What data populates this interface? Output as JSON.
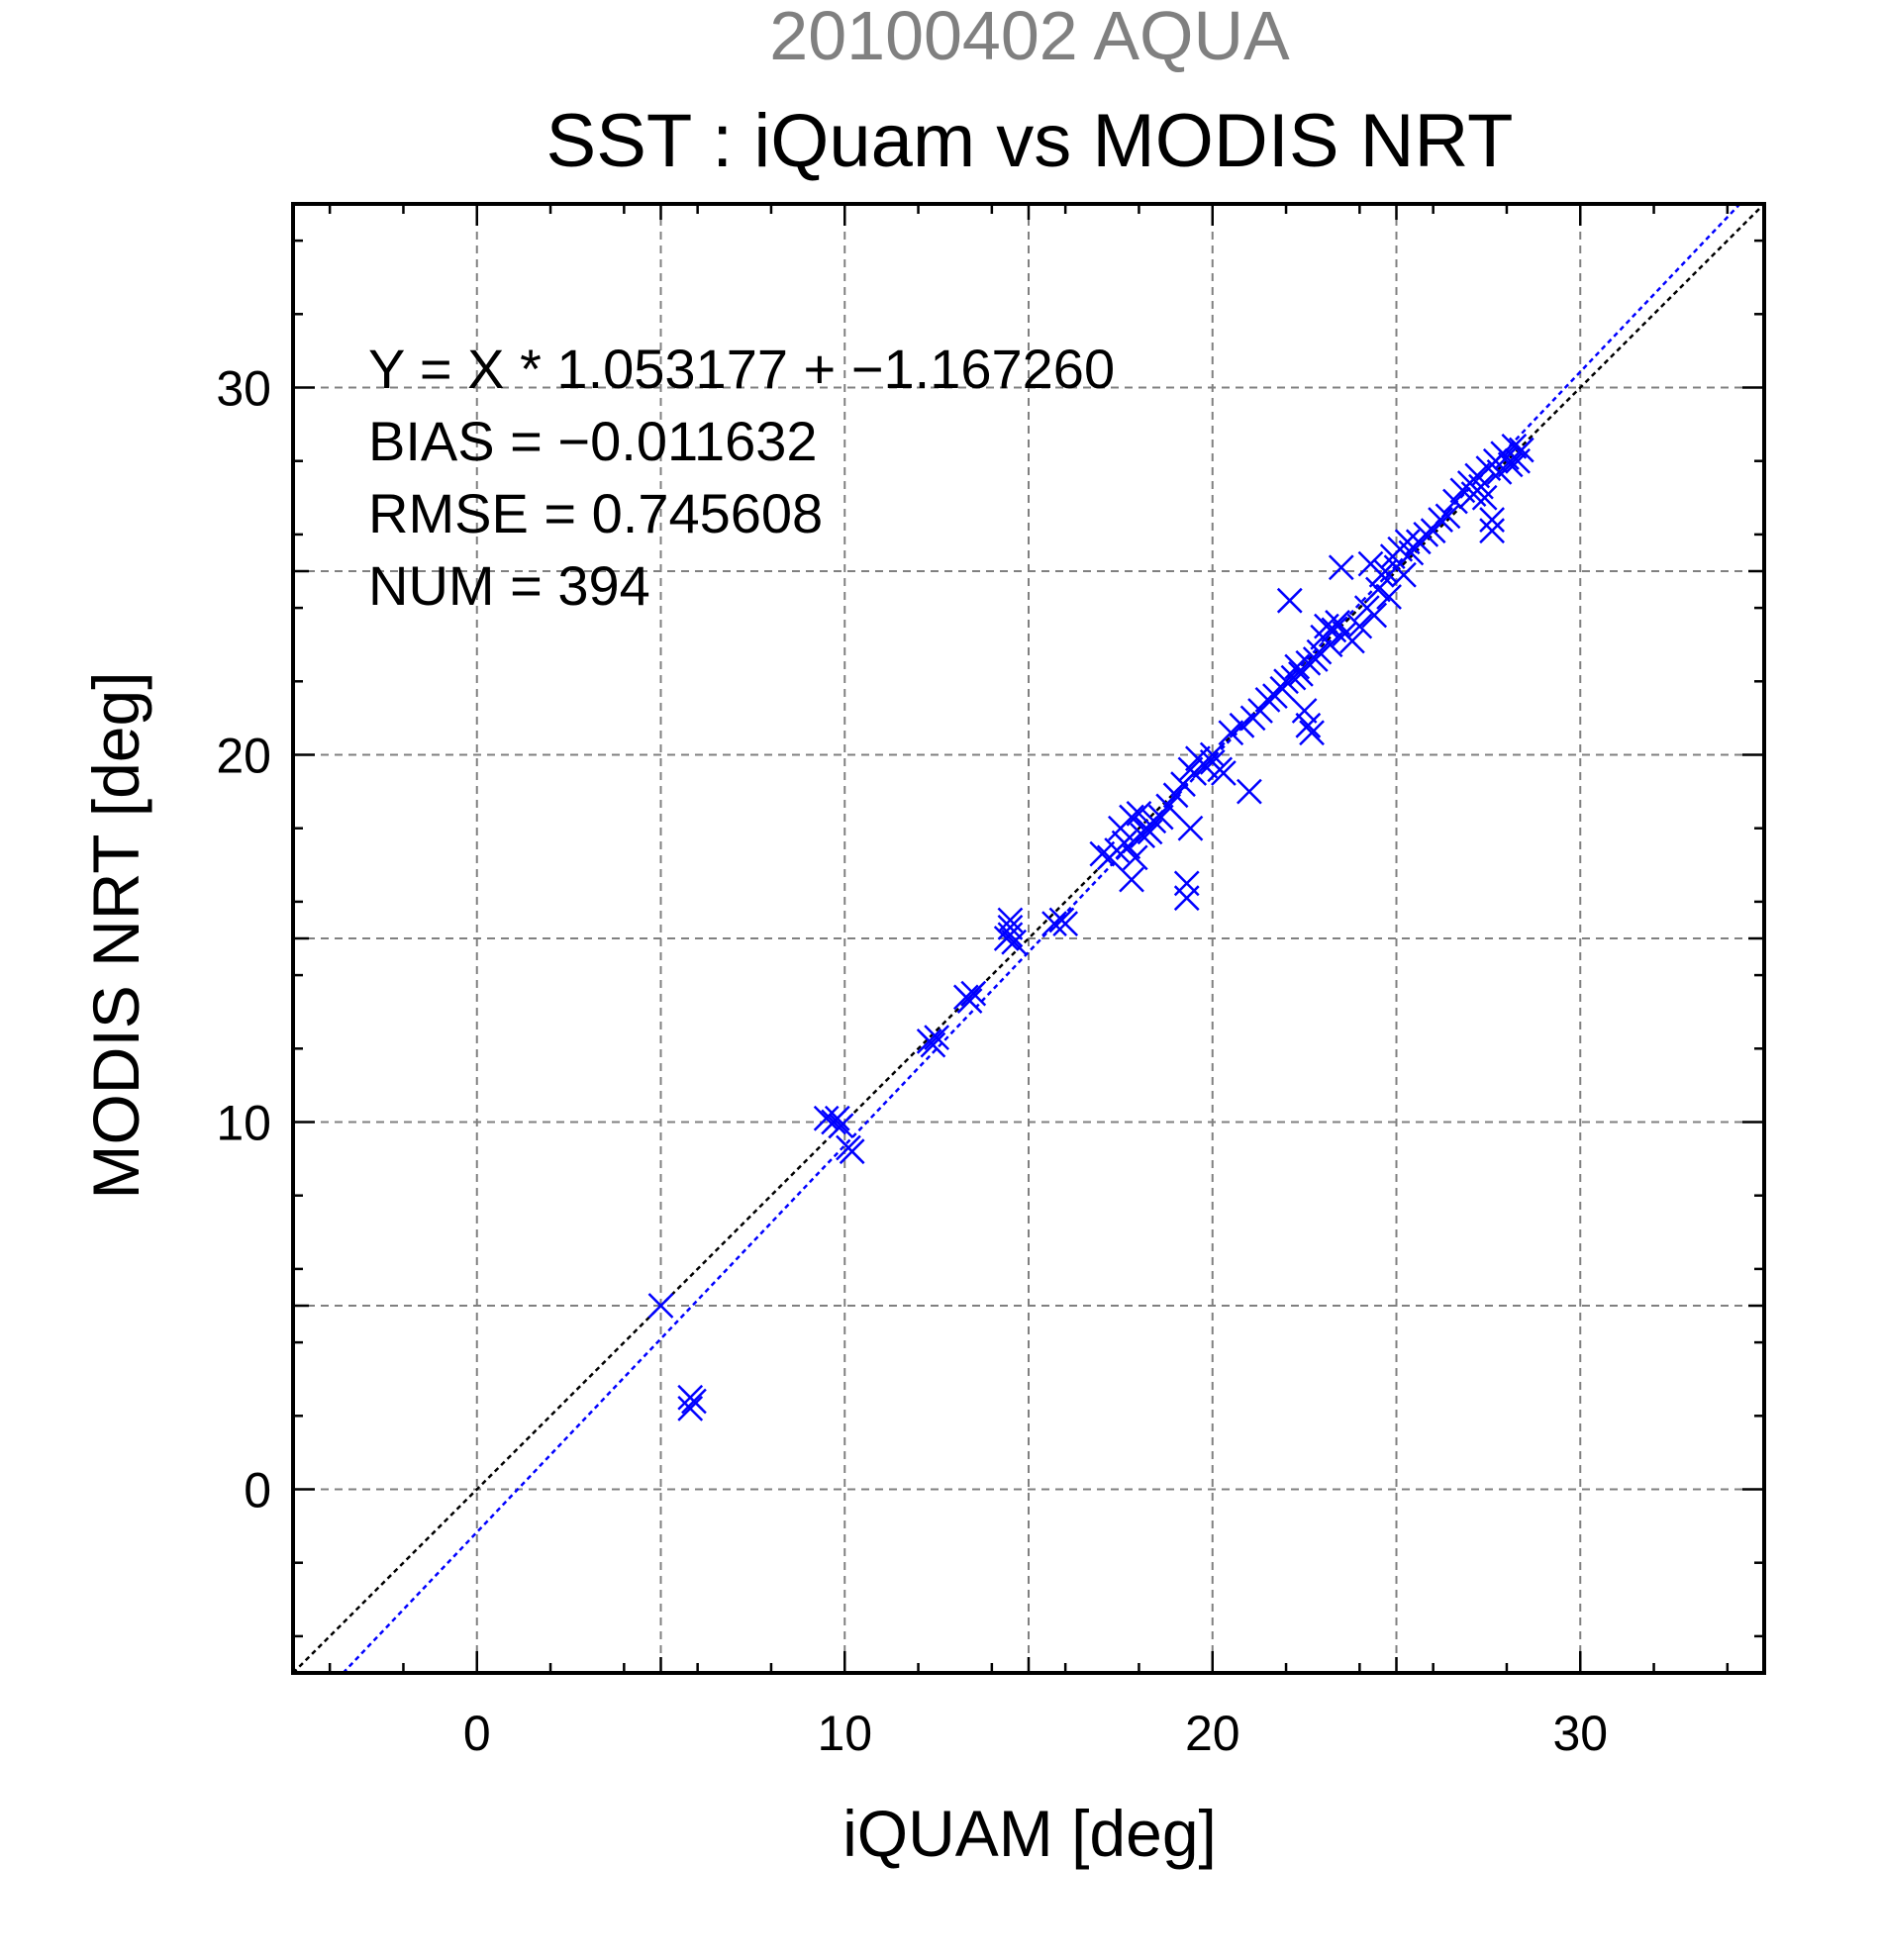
{
  "chart_data": {
    "type": "scatter",
    "supertitle": "20100402 AQUA",
    "title": "SST : iQuam vs MODIS NRT",
    "xlabel": "iQUAM [deg]",
    "ylabel": "MODIS NRT [deg]",
    "xlim": [
      -5,
      35
    ],
    "ylim": [
      -5,
      35
    ],
    "xticks": [
      0,
      10,
      20,
      30
    ],
    "yticks": [
      0,
      10,
      20,
      30
    ],
    "tick_labels_x": [
      "0",
      "10",
      "20",
      "30"
    ],
    "tick_labels_y": [
      "0",
      "10",
      "20",
      "30"
    ],
    "grid": true,
    "stats": [
      "Y = X * 1.053177 + −1.167260",
      "BIAS = −0.011632",
      "RMSE = 0.745608",
      "NUM = 394"
    ],
    "fit_line": {
      "slope": 1.053177,
      "intercept": -1.16726,
      "color": "#0000ff"
    },
    "identity_line": {
      "slope": 1,
      "intercept": 0,
      "color": "#000000"
    },
    "marker_color": "#0000ff",
    "supertitle_color": "#808080",
    "series": [
      {
        "marker": "x",
        "points": [
          [
            5.0,
            5.0
          ],
          [
            5.8,
            2.5
          ],
          [
            5.8,
            2.2
          ],
          [
            5.9,
            2.4
          ],
          [
            9.5,
            10.1
          ],
          [
            9.7,
            10.0
          ],
          [
            9.8,
            10.1
          ],
          [
            9.9,
            9.9
          ],
          [
            10.1,
            9.3
          ],
          [
            10.2,
            9.2
          ],
          [
            12.3,
            12.2
          ],
          [
            12.5,
            12.3
          ],
          [
            12.4,
            12.1
          ],
          [
            13.3,
            13.4
          ],
          [
            13.5,
            13.5
          ],
          [
            13.4,
            13.3
          ],
          [
            14.5,
            15.3
          ],
          [
            14.5,
            15.1
          ],
          [
            14.6,
            14.9
          ],
          [
            14.4,
            15.0
          ],
          [
            14.5,
            15.5
          ],
          [
            15.7,
            15.4
          ],
          [
            15.9,
            15.5
          ],
          [
            16.0,
            15.4
          ],
          [
            17.0,
            17.3
          ],
          [
            17.2,
            17.2
          ],
          [
            17.4,
            17.4
          ],
          [
            17.5,
            18.0
          ],
          [
            17.6,
            17.6
          ],
          [
            17.7,
            17.5
          ],
          [
            17.8,
            16.6
          ],
          [
            17.8,
            18.3
          ],
          [
            17.9,
            17.2
          ],
          [
            18.0,
            18.4
          ],
          [
            18.1,
            17.8
          ],
          [
            18.2,
            18.0
          ],
          [
            18.3,
            17.9
          ],
          [
            18.4,
            18.2
          ],
          [
            18.6,
            18.3
          ],
          [
            18.8,
            18.6
          ],
          [
            19.0,
            18.9
          ],
          [
            19.2,
            19.2
          ],
          [
            19.3,
            16.5
          ],
          [
            19.3,
            16.1
          ],
          [
            19.4,
            19.6
          ],
          [
            19.4,
            18.0
          ],
          [
            19.5,
            19.5
          ],
          [
            19.6,
            19.9
          ],
          [
            19.8,
            19.7
          ],
          [
            20.0,
            20.0
          ],
          [
            20.0,
            19.8
          ],
          [
            20.2,
            19.6
          ],
          [
            20.3,
            19.5
          ],
          [
            20.5,
            20.6
          ],
          [
            20.8,
            20.8
          ],
          [
            21.0,
            19.0
          ],
          [
            21.1,
            21.0
          ],
          [
            21.3,
            21.2
          ],
          [
            21.5,
            21.5
          ],
          [
            21.7,
            21.6
          ],
          [
            21.9,
            21.8
          ],
          [
            22.0,
            22.0
          ],
          [
            22.1,
            24.2
          ],
          [
            22.2,
            22.1
          ],
          [
            22.3,
            22.4
          ],
          [
            22.4,
            22.2
          ],
          [
            22.5,
            21.2
          ],
          [
            22.6,
            22.5
          ],
          [
            22.6,
            20.8
          ],
          [
            22.7,
            20.6
          ],
          [
            22.8,
            22.6
          ],
          [
            22.9,
            22.8
          ],
          [
            23.0,
            23.2
          ],
          [
            23.1,
            23.5
          ],
          [
            23.2,
            23.0
          ],
          [
            23.3,
            23.4
          ],
          [
            23.4,
            23.6
          ],
          [
            23.5,
            25.1
          ],
          [
            23.6,
            23.3
          ],
          [
            23.8,
            23.1
          ],
          [
            24.0,
            23.5
          ],
          [
            24.2,
            24.0
          ],
          [
            24.3,
            25.2
          ],
          [
            24.4,
            23.8
          ],
          [
            24.5,
            24.5
          ],
          [
            24.6,
            24.9
          ],
          [
            24.7,
            25.0
          ],
          [
            24.8,
            24.3
          ],
          [
            24.9,
            25.4
          ],
          [
            25.0,
            25.1
          ],
          [
            25.1,
            25.6
          ],
          [
            25.2,
            24.9
          ],
          [
            25.3,
            25.8
          ],
          [
            25.4,
            25.5
          ],
          [
            25.6,
            25.8
          ],
          [
            25.8,
            26.0
          ],
          [
            26.0,
            26.1
          ],
          [
            26.2,
            26.4
          ],
          [
            26.4,
            26.5
          ],
          [
            26.6,
            26.9
          ],
          [
            26.8,
            27.2
          ],
          [
            27.0,
            27.4
          ],
          [
            27.1,
            27.1
          ],
          [
            27.2,
            27.6
          ],
          [
            27.3,
            27.3
          ],
          [
            27.4,
            27.0
          ],
          [
            27.5,
            27.8
          ],
          [
            27.6,
            26.4
          ],
          [
            27.6,
            26.1
          ],
          [
            27.7,
            28.0
          ],
          [
            27.8,
            27.7
          ],
          [
            27.9,
            28.2
          ],
          [
            28.0,
            28.1
          ],
          [
            28.1,
            27.9
          ],
          [
            28.2,
            28.4
          ],
          [
            28.3,
            28.0
          ],
          [
            28.4,
            28.3
          ]
        ]
      }
    ]
  }
}
